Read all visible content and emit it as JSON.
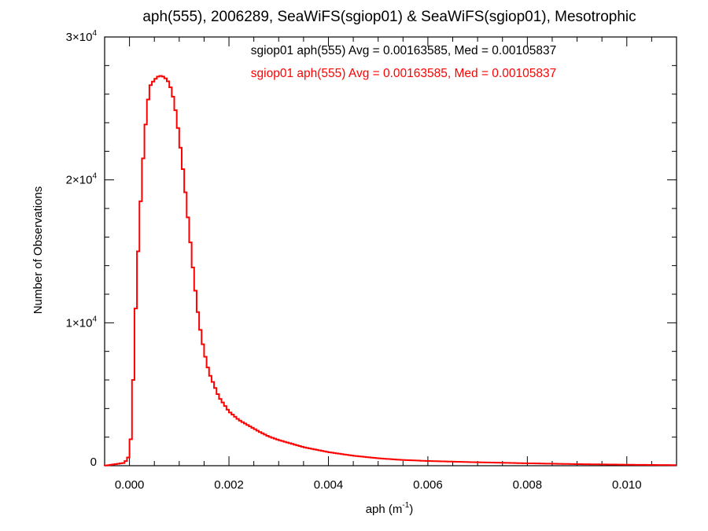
{
  "chart_data": {
    "type": "histogram",
    "title": "aph(555), 2006289, SeaWiFS(sgiop01) & SeaWiFS(sgiop01), Mesotrophic",
    "xlabel_main": "aph (m",
    "xlabel_sup": "-1",
    "xlabel_close": ")",
    "ylabel": "Number of Observations",
    "xlim": [
      -0.0005,
      0.011
    ],
    "ylim": [
      0,
      30000
    ],
    "x_ticks": [
      0.0,
      0.002,
      0.004,
      0.006,
      0.008,
      0.01
    ],
    "x_tick_labels": [
      "0.000",
      "0.002",
      "0.004",
      "0.006",
      "0.008",
      "0.010"
    ],
    "y_ticks": [
      {
        "value": 0,
        "mantissa": "0",
        "exp": ""
      },
      {
        "value": 10000,
        "mantissa": "1×10",
        "exp": "4"
      },
      {
        "value": 20000,
        "mantissa": "2×10",
        "exp": "4"
      },
      {
        "value": 30000,
        "mantissa": "3×10",
        "exp": "4"
      }
    ],
    "annotations": [
      {
        "text": "sgiop01 aph(555) Avg = 0.00163585, Med = 0.00105837",
        "color": "#000000"
      },
      {
        "text": "sgiop01 aph(555) Avg = 0.00163585, Med = 0.00105837",
        "color": "#ff0000"
      }
    ],
    "series": [
      {
        "color": "#ff0000",
        "x": [
          -0.0005,
          -0.0001,
          0.0,
          5e-05,
          0.0001,
          0.0002,
          0.0003,
          0.0004,
          0.0005,
          0.0006,
          0.0007,
          0.0008,
          0.0009,
          0.001,
          0.0011,
          0.0012,
          0.0013,
          0.0014,
          0.0015,
          0.0016,
          0.0018,
          0.002,
          0.0022,
          0.0024,
          0.0026,
          0.0028,
          0.003,
          0.0035,
          0.004,
          0.0045,
          0.005,
          0.0055,
          0.006,
          0.007,
          0.008,
          0.009,
          0.01,
          0.011
        ],
        "y": [
          0,
          200,
          700,
          3000,
          9000,
          17000,
          23000,
          26500,
          27000,
          27300,
          27200,
          26800,
          25500,
          23000,
          20000,
          16500,
          13000,
          10000,
          8000,
          6500,
          4800,
          3800,
          3200,
          2800,
          2400,
          2050,
          1800,
          1300,
          950,
          700,
          520,
          400,
          330,
          240,
          170,
          110,
          70,
          40
        ]
      }
    ],
    "grid": false,
    "colors": {
      "series": "#ff0000",
      "axes": "#000000"
    }
  }
}
